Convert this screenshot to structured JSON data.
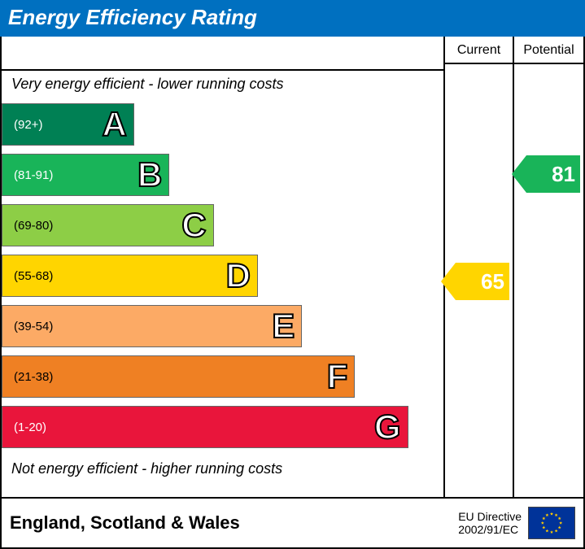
{
  "title": "Energy Efficiency Rating",
  "title_bg": "#0070c0",
  "columns": {
    "current": "Current",
    "potential": "Potential"
  },
  "top_note": "Very energy efficient - lower running costs",
  "bottom_note": "Not energy efficient - higher running costs",
  "bands": [
    {
      "letter": "A",
      "range": "(92+)",
      "color": "#008054",
      "width_pct": 30,
      "text_color": "#ffffff"
    },
    {
      "letter": "B",
      "range": "(81-91)",
      "color": "#19b459",
      "width_pct": 38,
      "text_color": "#ffffff"
    },
    {
      "letter": "C",
      "range": "(69-80)",
      "color": "#8dce46",
      "width_pct": 48,
      "text_color": "#000000"
    },
    {
      "letter": "D",
      "range": "(55-68)",
      "color": "#ffd500",
      "width_pct": 58,
      "text_color": "#000000"
    },
    {
      "letter": "E",
      "range": "(39-54)",
      "color": "#fcaa65",
      "width_pct": 68,
      "text_color": "#000000"
    },
    {
      "letter": "F",
      "range": "(21-38)",
      "color": "#ef8023",
      "width_pct": 80,
      "text_color": "#000000"
    },
    {
      "letter": "G",
      "range": "(1-20)",
      "color": "#e9153b",
      "width_pct": 92,
      "text_color": "#ffffff"
    }
  ],
  "current": {
    "value": "65",
    "band_letter": "D",
    "color": "#ffd500",
    "text_color": "#ffffff"
  },
  "potential": {
    "value": "81",
    "band_letter": "B",
    "color": "#19b459",
    "text_color": "#ffffff"
  },
  "footer": {
    "region": "England, Scotland & Wales",
    "directive_l1": "EU Directive",
    "directive_l2": "2002/91/EC"
  },
  "layout": {
    "band_row_height": 58,
    "marker_height": 46
  },
  "eu_flag": {
    "bg": "#003399",
    "star": "#ffcc00"
  }
}
